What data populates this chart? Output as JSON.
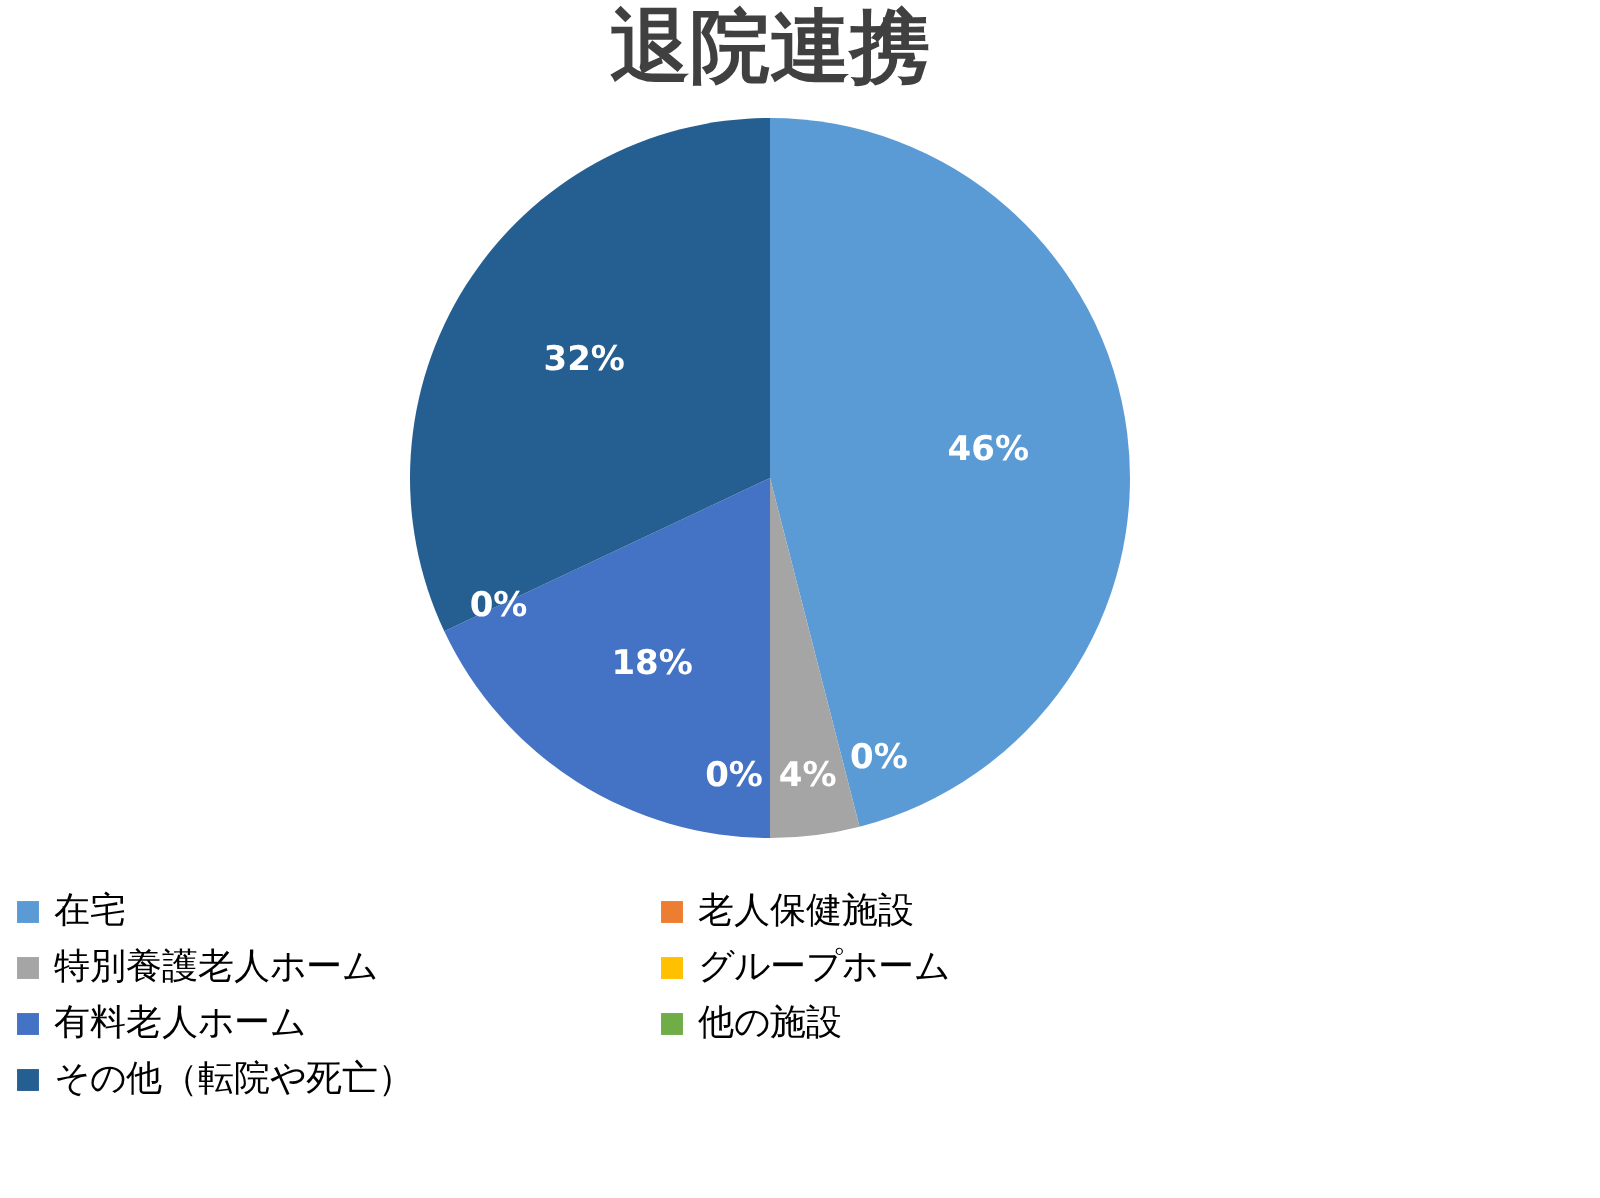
{
  "chart_data": {
    "type": "pie",
    "title": "退院連携",
    "categories": [
      "在宅",
      "老人保健施設",
      "特別養護老人ホーム",
      "グループホーム",
      "有料老人ホーム",
      "他の施設",
      "その他（転院や死亡）"
    ],
    "values": [
      46,
      0,
      4,
      0,
      18,
      0,
      32
    ],
    "colors": [
      "#5b9bd5",
      "#ed7d31",
      "#a5a5a5",
      "#ffc000",
      "#4472c4",
      "#70ad47",
      "#255e91"
    ],
    "value_labels": [
      "46%",
      "0%",
      "4%",
      "0%",
      "18%",
      "0%",
      "32%"
    ],
    "legend": "bottom"
  }
}
